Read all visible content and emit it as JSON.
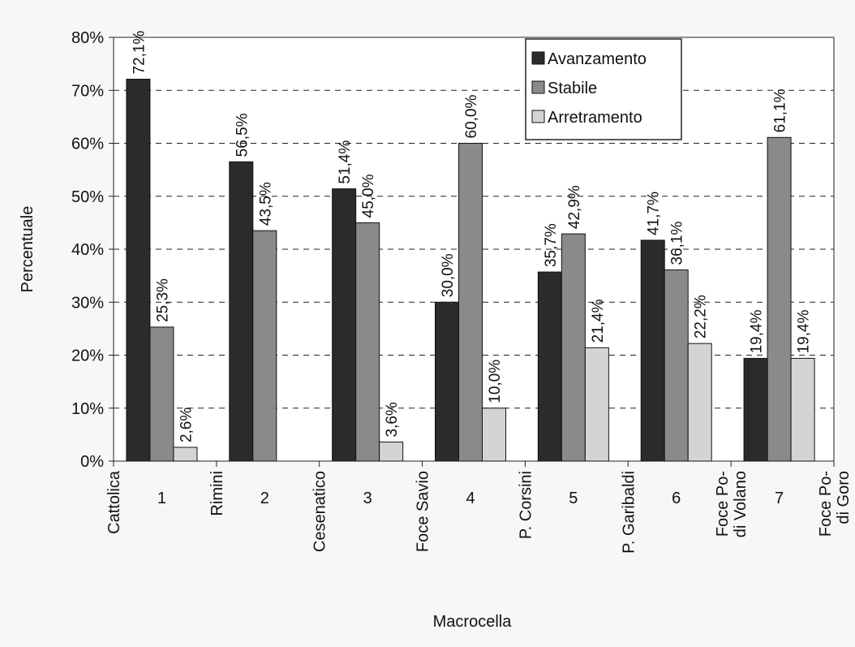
{
  "chart_data": {
    "type": "bar",
    "xlabel": "Macrocella",
    "ylabel": "Percentuale",
    "ylim": [
      0,
      0.8
    ],
    "yticks": [
      "0%",
      "10%",
      "20%",
      "30%",
      "40%",
      "50%",
      "60%",
      "70%",
      "80%"
    ],
    "grid": "horizontal dashed",
    "legend_position": "top-right",
    "categories": [
      "1",
      "2",
      "3",
      "4",
      "5",
      "6",
      "7"
    ],
    "boundary_labels": [
      [
        "Cattolica"
      ],
      [
        "Rimini"
      ],
      [
        "Cesenatico"
      ],
      [
        "Foce Savio"
      ],
      [
        "P. Corsini"
      ],
      [
        "P. Garibaldi"
      ],
      [
        "Foce Po-",
        "di Volano"
      ],
      [
        "Foce Po-",
        "di Goro"
      ]
    ],
    "series": [
      {
        "name": "Avanzamento",
        "color": "#2b2b2b",
        "values": [
          0.721,
          0.565,
          0.514,
          0.3,
          0.357,
          0.417,
          0.194
        ],
        "labels": [
          "72,1%",
          "56,5%",
          "51,4%",
          "30,0%",
          "35,7%",
          "41,7%",
          "19,4%"
        ]
      },
      {
        "name": "Stabile",
        "color": "#8a8a8a",
        "values": [
          0.253,
          0.435,
          0.45,
          0.6,
          0.429,
          0.361,
          0.611
        ],
        "labels": [
          "25,3%",
          "43,5%",
          "45,0%",
          "60,0%",
          "42,9%",
          "36,1%",
          "61,1%"
        ]
      },
      {
        "name": "Arretramento",
        "color": "#d4d4d4",
        "values": [
          0.026,
          null,
          0.036,
          0.1,
          0.214,
          0.222,
          0.194
        ],
        "labels": [
          "2,6%",
          "",
          "3,6%",
          "10,0%",
          "21,4%",
          "22,2%",
          "19,4%"
        ]
      }
    ]
  }
}
